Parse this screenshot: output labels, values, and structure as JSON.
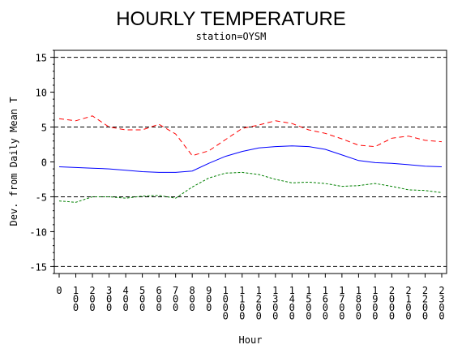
{
  "chart_data": {
    "type": "line",
    "title": "HOURLY TEMPERATURE",
    "subtitle": "station=OYSM",
    "xlabel": "Hour",
    "ylabel": "Dev. from Daily Mean T",
    "xlim": [
      0,
      2300
    ],
    "ylim": [
      -16,
      16
    ],
    "yticks": [
      -15,
      -10,
      -5,
      0,
      5,
      10,
      15
    ],
    "xticks": [
      "0",
      "100",
      "200",
      "300",
      "400",
      "500",
      "600",
      "700",
      "800",
      "900",
      "1000",
      "1100",
      "1200",
      "1300",
      "1400",
      "1500",
      "1600",
      "1700",
      "1800",
      "1900",
      "2000",
      "2100",
      "2200",
      "2300"
    ],
    "reference_lines": [
      15,
      5,
      -5,
      -15
    ],
    "x": [
      0,
      100,
      200,
      300,
      400,
      500,
      600,
      700,
      800,
      900,
      1000,
      1100,
      1200,
      1300,
      1400,
      1500,
      1600,
      1700,
      1800,
      1900,
      2000,
      2100,
      2200,
      2300
    ],
    "series": [
      {
        "color": "#ff0000",
        "dash": "red-dashed",
        "values": [
          6.2,
          5.9,
          6.6,
          5.0,
          4.6,
          4.6,
          5.4,
          4.0,
          0.9,
          1.6,
          3.2,
          4.8,
          5.3,
          5.9,
          5.5,
          4.6,
          4.1,
          3.3,
          2.4,
          2.2,
          3.4,
          3.7,
          3.1,
          2.9
        ]
      },
      {
        "color": "#0000ff",
        "dash": "blue-solid",
        "values": [
          -0.7,
          -0.8,
          -0.9,
          -1.0,
          -1.2,
          -1.4,
          -1.5,
          -1.5,
          -1.3,
          -0.2,
          0.8,
          1.5,
          2.0,
          2.2,
          2.3,
          2.2,
          1.8,
          1.0,
          0.2,
          -0.1,
          -0.2,
          -0.4,
          -0.6,
          -0.7
        ]
      },
      {
        "color": "#008000",
        "dash": "green-dashed",
        "values": [
          -5.6,
          -5.8,
          -5.0,
          -5.0,
          -5.2,
          -4.9,
          -4.8,
          -5.2,
          -3.6,
          -2.3,
          -1.6,
          -1.5,
          -1.8,
          -2.5,
          -3.0,
          -2.9,
          -3.1,
          -3.5,
          -3.4,
          -3.1,
          -3.5,
          -4.0,
          -4.1,
          -4.4
        ]
      }
    ]
  }
}
